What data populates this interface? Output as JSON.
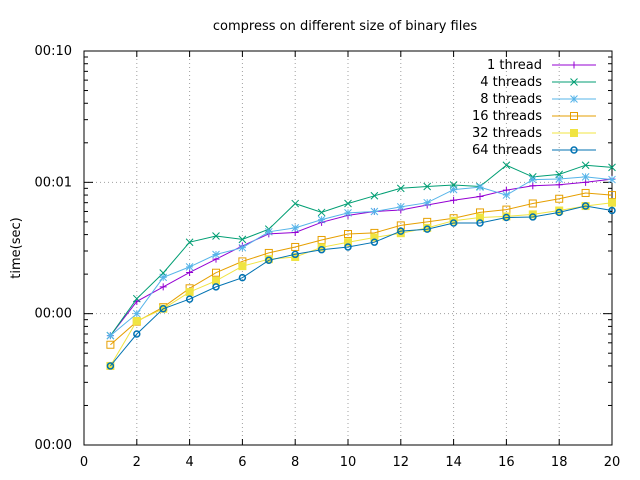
{
  "chart_data": {
    "type": "line",
    "title": "compress on different size of binary files",
    "xlabel": "",
    "ylabel": "time(sec)",
    "xlim": [
      0,
      20
    ],
    "ylim": [
      0.0001,
      0.1
    ],
    "log_y": true,
    "grid": true,
    "legend_position": "top-right",
    "x_ticks": [
      0,
      2,
      4,
      6,
      8,
      10,
      12,
      14,
      16,
      18,
      20
    ],
    "x_tick_labels": [
      "0",
      "2",
      "4",
      "6",
      "8",
      "10",
      "12",
      "14",
      "16",
      "18",
      "20"
    ],
    "y_ticks": [
      0.0001,
      0.001,
      0.01,
      0.1
    ],
    "y_tick_labels": [
      "00:00",
      "00:00",
      "00:01",
      "00:10"
    ],
    "x": [
      1,
      2,
      3,
      4,
      5,
      6,
      7,
      8,
      9,
      10,
      11,
      12,
      13,
      14,
      15,
      16,
      17,
      18,
      19,
      20
    ],
    "series": [
      {
        "name": "1 thread",
        "color": "#9400d3",
        "marker": "plus",
        "values": [
          0.00068,
          0.00124,
          0.0016,
          0.00206,
          0.0026,
          0.00328,
          0.00405,
          0.00415,
          0.00496,
          0.0056,
          0.006,
          0.00616,
          0.00672,
          0.0073,
          0.0078,
          0.00872,
          0.00942,
          0.00958,
          0.01,
          0.01058
        ]
      },
      {
        "name": "4 threads",
        "color": "#009e73",
        "marker": "x",
        "values": [
          0.00068,
          0.0013,
          0.00204,
          0.0035,
          0.0039,
          0.00368,
          0.0044,
          0.00689,
          0.0059,
          0.0069,
          0.0079,
          0.009,
          0.0093,
          0.00955,
          0.0093,
          0.0135,
          0.011,
          0.0115,
          0.0135,
          0.013
        ]
      },
      {
        "name": "8 threads",
        "color": "#56b4e9",
        "marker": "star",
        "values": [
          0.00068,
          0.001,
          0.00189,
          0.00227,
          0.00282,
          0.00318,
          0.0042,
          0.0045,
          0.0052,
          0.00585,
          0.006,
          0.0065,
          0.007,
          0.0088,
          0.0092,
          0.008,
          0.0105,
          0.0106,
          0.011,
          0.0105
        ]
      },
      {
        "name": "16 threads",
        "color": "#e69f00",
        "marker": "square",
        "values": [
          0.00058,
          0.00087,
          0.00112,
          0.00156,
          0.00205,
          0.0025,
          0.0029,
          0.00322,
          0.00364,
          0.00404,
          0.00412,
          0.0047,
          0.005,
          0.00533,
          0.0059,
          0.0062,
          0.0069,
          0.0075,
          0.0083,
          0.008
        ]
      },
      {
        "name": "32 threads",
        "color": "#f0e442",
        "marker": "filled-square",
        "values": [
          0.0004,
          0.00088,
          0.00109,
          0.00146,
          0.00178,
          0.0023,
          0.0026,
          0.0027,
          0.0032,
          0.0035,
          0.0038,
          0.0041,
          0.0045,
          0.0051,
          0.0054,
          0.0055,
          0.0057,
          0.0061,
          0.0066,
          0.007
        ]
      },
      {
        "name": "64 threads",
        "color": "#0072b2",
        "marker": "circle",
        "values": [
          0.0004,
          0.0007,
          0.00109,
          0.00129,
          0.0016,
          0.00188,
          0.00255,
          0.00283,
          0.00307,
          0.00322,
          0.0035,
          0.00425,
          0.0044,
          0.0049,
          0.0049,
          0.0054,
          0.00545,
          0.0059,
          0.0066,
          0.0061
        ]
      }
    ]
  }
}
